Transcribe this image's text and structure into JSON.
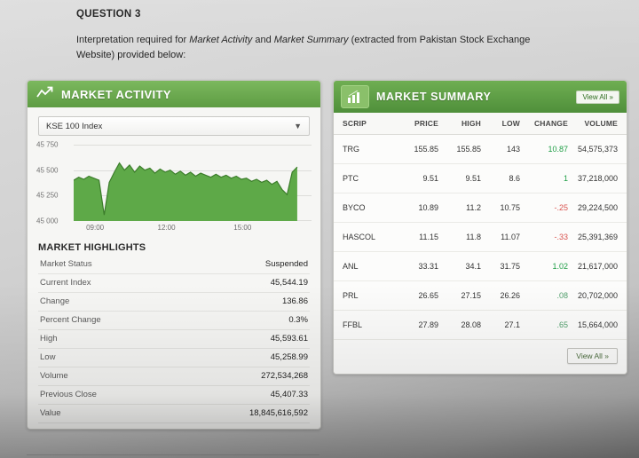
{
  "question": {
    "title": "QUESTION 3",
    "intro_1": "Interpretation required for ",
    "term_1": "Market Activity",
    "intro_2": " and ",
    "term_2": "Market Summary",
    "intro_3": " (extracted from Pakistan Stock Exchange Website) provided below:"
  },
  "market_activity": {
    "title": "MARKET ACTIVITY",
    "index_selector": "KSE 100 Index",
    "highlights_title": "MARKET HIGHLIGHTS",
    "highlights": [
      {
        "label": "Market Status",
        "value": "Suspended"
      },
      {
        "label": "Current Index",
        "value": "45,544.19"
      },
      {
        "label": "Change",
        "value": "136.86"
      },
      {
        "label": "Percent Change",
        "value": "0.3%"
      },
      {
        "label": "High",
        "value": "45,593.61"
      },
      {
        "label": "Low",
        "value": "45,258.99"
      },
      {
        "label": "Volume",
        "value": "272,534,268"
      },
      {
        "label": "Previous Close",
        "value": "45,407.33"
      },
      {
        "label": "Value",
        "value": "18,845,616,592"
      }
    ]
  },
  "market_summary": {
    "title": "MARKET SUMMARY",
    "view_all_label": "View All »",
    "columns": [
      "SCRIP",
      "PRICE",
      "HIGH",
      "LOW",
      "CHANGE",
      "VOLUME"
    ],
    "rows": [
      {
        "scrip": "TRG",
        "price": "155.85",
        "high": "155.85",
        "low": "143",
        "change": "10.87",
        "change_color": "#1f9e46",
        "volume": "54,575,373"
      },
      {
        "scrip": "PTC",
        "price": "9.51",
        "high": "9.51",
        "low": "8.6",
        "change": "1",
        "change_color": "#1f9e46",
        "volume": "37,218,000"
      },
      {
        "scrip": "BYCO",
        "price": "10.89",
        "high": "11.2",
        "low": "10.75",
        "change": "-.25",
        "change_color": "#d9534f",
        "volume": "29,224,500"
      },
      {
        "scrip": "HASCOL",
        "price": "11.15",
        "high": "11.8",
        "low": "11.07",
        "change": "-.33",
        "change_color": "#d9534f",
        "volume": "25,391,369"
      },
      {
        "scrip": "ANL",
        "price": "33.31",
        "high": "34.1",
        "low": "31.75",
        "change": "1.02",
        "change_color": "#1f9e46",
        "volume": "21,617,000"
      },
      {
        "scrip": "PRL",
        "price": "26.65",
        "high": "27.15",
        "low": "26.26",
        "change": ".08",
        "change_color": "#4f9e6a",
        "volume": "20,702,000"
      },
      {
        "scrip": "FFBL",
        "price": "27.89",
        "high": "28.08",
        "low": "27.1",
        "change": ".65",
        "change_color": "#4f9e6a",
        "volume": "15,664,000"
      }
    ]
  },
  "chart_data": {
    "type": "area",
    "series": [
      {
        "name": "KSE 100 Index",
        "values": [
          45400,
          45430,
          45410,
          45440,
          45420,
          45400,
          45060,
          45380,
          45480,
          45570,
          45500,
          45550,
          45480,
          45540,
          45500,
          45520,
          45470,
          45510,
          45480,
          45500,
          45460,
          45490,
          45450,
          45480,
          45440,
          45470,
          45450,
          45430,
          45460,
          45430,
          45450,
          45420,
          45440,
          45410,
          45420,
          45390,
          45410,
          45380,
          45400,
          45360,
          45390,
          45310,
          45260,
          45480,
          45530
        ]
      }
    ],
    "x_ticks": [
      "09:00",
      "12:00",
      "15:00"
    ],
    "y_ticks": [
      "45 750",
      "45 500",
      "45 250",
      "45 000"
    ],
    "ylim": [
      45000,
      45750
    ],
    "grid": "horizontal"
  },
  "colors": {
    "positive": "#1f9e46",
    "negative": "#d9534f",
    "area_fill": "#5ea948",
    "area_line": "#3c7d2b",
    "header_green_light": "#7cb85e",
    "header_green_dark": "#4f8f3a"
  }
}
